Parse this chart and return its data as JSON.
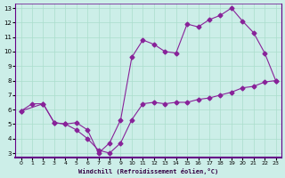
{
  "xlabel": "Windchill (Refroidissement éolien,°C)",
  "bg_color": "#cceee8",
  "line_color": "#882299",
  "xlim": [
    0,
    23
  ],
  "ylim": [
    3,
    13
  ],
  "xticks": [
    0,
    1,
    2,
    3,
    4,
    5,
    6,
    7,
    8,
    9,
    10,
    11,
    12,
    13,
    14,
    15,
    16,
    17,
    18,
    19,
    20,
    21,
    22,
    23
  ],
  "yticks": [
    3,
    4,
    5,
    6,
    7,
    8,
    9,
    10,
    11,
    12,
    13
  ],
  "line1_x": [
    0,
    1,
    2,
    3,
    4,
    5,
    6,
    7,
    8,
    9,
    10,
    11,
    12,
    13,
    14,
    15,
    16,
    17,
    18,
    19,
    20,
    21,
    22,
    23
  ],
  "line1_y": [
    5.9,
    6.4,
    6.4,
    5.1,
    5.0,
    4.6,
    4.0,
    3.2,
    3.0,
    3.7,
    5.3,
    6.4,
    6.5,
    6.4,
    6.5,
    6.5,
    6.7,
    6.8,
    7.0,
    7.2,
    7.5,
    7.6,
    7.9,
    8.0
  ],
  "line2_x": [
    0,
    2,
    3,
    4,
    5,
    6,
    7,
    8,
    9,
    10,
    11,
    12,
    13,
    14,
    15,
    16,
    17,
    18,
    19,
    20,
    21,
    22,
    23
  ],
  "line2_y": [
    5.9,
    6.4,
    5.1,
    5.0,
    5.1,
    4.6,
    3.0,
    3.7,
    5.3,
    9.6,
    10.8,
    10.5,
    10.0,
    9.9,
    11.9,
    11.7,
    12.2,
    12.5,
    13.0,
    12.1,
    11.3,
    9.9,
    8.0
  ]
}
